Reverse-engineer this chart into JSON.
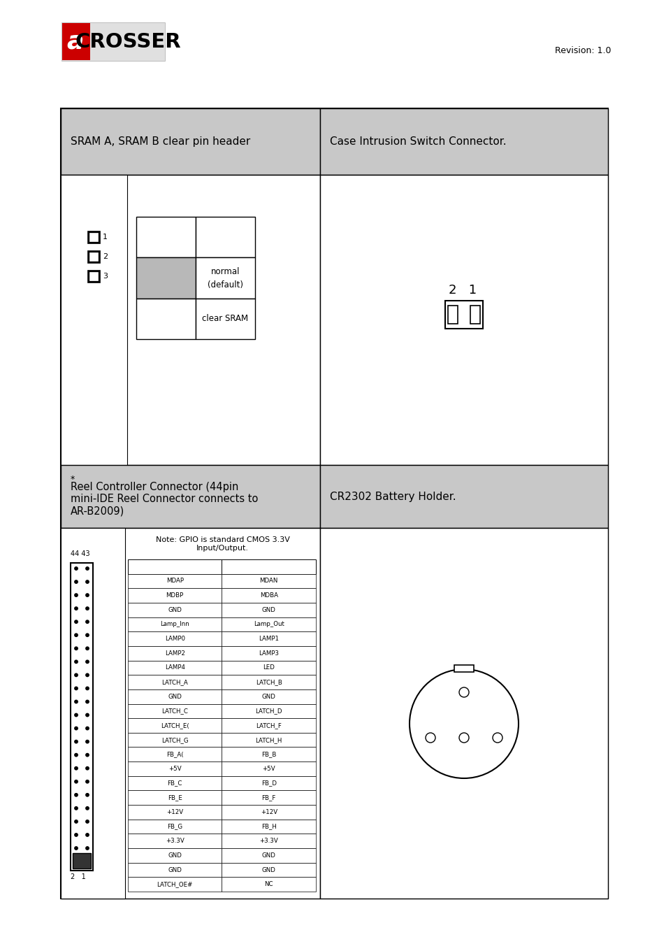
{
  "revision_text": "Revision: 1.0",
  "bg_color": "#ffffff",
  "header_bg": "#c8c8c8",
  "pin_labels_left": [
    "MDAP",
    "MDBP",
    "GND",
    "Lamp_Inn",
    "LAMP0",
    "LAMP2",
    "LAMP4",
    "LATCH_A",
    "GND",
    "LATCH_C",
    "LATCH_E(",
    "LATCH_G",
    "FB_A(",
    "+5V",
    "FB_C",
    "FB_E",
    "+12V",
    "FB_G",
    "+3.3V",
    "GND",
    "GND",
    "LATCH_OE#"
  ],
  "pin_labels_right": [
    "MDAN",
    "MDBA",
    "GND",
    "Lamp_Out",
    "LAMP1",
    "LAMP3",
    "LED",
    "LATCH_B",
    "GND",
    "LATCH_D",
    "LATCH_F",
    "LATCH_H",
    "FB_B",
    "+5V",
    "FB_D",
    "FB_F",
    "+12V",
    "FB_H",
    "+3.3V",
    "GND",
    "GND",
    "NC"
  ],
  "cell1_header": "SRAM A, SRAM B clear pin header",
  "cell2_header": "Case Intrusion Switch Connector.",
  "cell3_header_line1": "Reel Controller Connector (44pin",
  "cell3_header_line2": "mini-IDE Reel Connector connects to",
  "cell3_header_line3": "AR-B2009)",
  "cell3_star": "*",
  "cell4_header": "CR2302 Battery Holder.",
  "sram_note_line1": "Note: GPIO is standard CMOS 3.3V",
  "sram_note_line2": "Input/Output."
}
